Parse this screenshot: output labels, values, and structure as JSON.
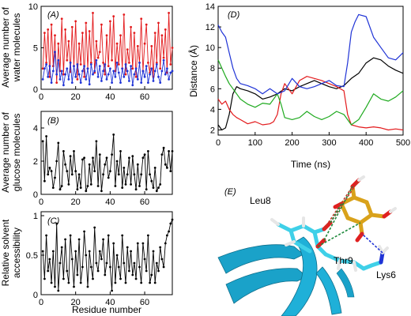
{
  "chart_data": [
    {
      "type": "line",
      "panel_label": "(A)",
      "ylabel": [
        "Average number of",
        "water molecules"
      ],
      "xlabel": "",
      "xlim": [
        0,
        76
      ],
      "ylim": [
        0,
        10
      ],
      "xticks": [
        0,
        20,
        40,
        60
      ],
      "yticks": [
        0,
        5,
        10
      ],
      "series": [
        {
          "color": "#e31a1c",
          "marker": "dot",
          "values": [
            2.5,
            6.8,
            3.2,
            7.2,
            1.5,
            7.8,
            2.8,
            6.5,
            0.8,
            5.5,
            2.2,
            8.5,
            1.8,
            7.2,
            3.5,
            5.8,
            2.1,
            7.5,
            2.8,
            8.2,
            1.2,
            5.5,
            3.0,
            6.8,
            1.5,
            8.0,
            2.5,
            7.0,
            3.2,
            9.2,
            2.0,
            5.8,
            3.8,
            4.5,
            7.8,
            3.2,
            1.8,
            6.5,
            2.8,
            8.2,
            3.5,
            8.8,
            2.2,
            5.5,
            3.0,
            6.5,
            2.5,
            9.0,
            1.8,
            4.8,
            3.2,
            7.5,
            2.5,
            6.8,
            1.5,
            5.2,
            3.2,
            8.5,
            2.2,
            5.5,
            7.8,
            3.2,
            2.0,
            5.2,
            1.5,
            6.8,
            3.2,
            8.0,
            2.5,
            6.5,
            3.8,
            7.2,
            2.0,
            9.2,
            3.0,
            5.0
          ]
        },
        {
          "color": "#1f33d6",
          "marker": "dot",
          "values": [
            1.2,
            2.5,
            3.0,
            1.5,
            2.8,
            0.8,
            2.2,
            4.5,
            1.8,
            3.5,
            1.2,
            2.2,
            0.5,
            1.8,
            2.5,
            1.2,
            3.2,
            0.8,
            2.8,
            1.5,
            3.0,
            1.8,
            0.8,
            2.2,
            2.8,
            1.2,
            2.5,
            0.6,
            3.0,
            1.8,
            2.2,
            3.5,
            1.5,
            2.8,
            1.0,
            2.2,
            3.0,
            1.2,
            1.8,
            2.5,
            0.8,
            2.2,
            1.5,
            3.2,
            2.0,
            0.8,
            2.5,
            1.5,
            3.0,
            2.2,
            1.0,
            2.8,
            0.5,
            1.8,
            2.5,
            1.2,
            3.2,
            0.8,
            2.2,
            1.5,
            2.8,
            0.8,
            1.8,
            2.5,
            1.0,
            2.2,
            3.0,
            1.5,
            0.8,
            2.2,
            3.5,
            1.8,
            2.5,
            1.2,
            2.0,
            2.2
          ]
        }
      ]
    },
    {
      "type": "line",
      "panel_label": "(B)",
      "ylabel": [
        "Average number of",
        "glucose molecules"
      ],
      "xlabel": "",
      "xlim": [
        0,
        76
      ],
      "ylim": [
        0,
        5
      ],
      "xticks": [
        0,
        20,
        40,
        60
      ],
      "yticks": [
        0,
        2,
        4
      ],
      "series": [
        {
          "color": "#000000",
          "marker": "dot",
          "values": [
            3.2,
            0.8,
            3.5,
            1.2,
            1.6,
            1.4,
            0.4,
            1.0,
            2.0,
            3.1,
            0.3,
            0.5,
            2.6,
            1.8,
            1.4,
            0.6,
            2.3,
            1.2,
            2.6,
            1.4,
            0.3,
            1.2,
            0.4,
            2.1,
            2.2,
            0.2,
            0.5,
            1.8,
            0.6,
            2.2,
            1.4,
            3.2,
            0.5,
            2.4,
            0.2,
            1.2,
            1.8,
            2.2,
            1.0,
            1.4,
            2.4,
            3.6,
            0.5,
            2.0,
            1.2,
            2.6,
            0.4,
            1.6,
            0.6,
            1.2,
            2.2,
            0.6,
            2.3,
            1.2,
            0.3,
            1.8,
            0.5,
            1.2,
            2.2,
            2.4,
            0.3,
            2.6,
            1.2,
            0.8,
            0.4,
            1.6,
            0.2,
            0.4,
            0.6,
            2.4,
            2.8,
            1.8,
            1.6,
            2.6,
            1.4,
            2.6
          ]
        }
      ]
    },
    {
      "type": "line",
      "panel_label": "(C)",
      "ylabel": [
        "Relative solvent",
        "accessibility"
      ],
      "xlabel": "Residue number",
      "xlim": [
        0,
        76
      ],
      "ylim": [
        0,
        1.05
      ],
      "xticks": [
        0,
        20,
        40,
        60
      ],
      "yticks": [
        0,
        0.5,
        1
      ],
      "series": [
        {
          "color": "#000000",
          "marker": "dot",
          "values": [
            0.55,
            0.2,
            0.75,
            0.3,
            0.45,
            0.15,
            0.55,
            0.1,
            0.9,
            0.05,
            0.4,
            0.6,
            0.2,
            0.7,
            0.3,
            0.15,
            0.75,
            0.45,
            0.1,
            0.55,
            0.25,
            0.7,
            0.15,
            0.35,
            0.8,
            0.5,
            0.1,
            0.55,
            0.35,
            0.2,
            0.85,
            0.4,
            0.3,
            0.55,
            0.45,
            0.7,
            0.25,
            0.4,
            0.75,
            0.35,
            0.05,
            0.65,
            0.15,
            0.5,
            0.35,
            0.2,
            0.75,
            0.4,
            0.15,
            0.6,
            0.3,
            0.55,
            0.25,
            0.4,
            0.2,
            0.65,
            0.35,
            0.15,
            0.65,
            0.45,
            0.3,
            0.75,
            0.15,
            0.25,
            0.55,
            0.15,
            0.4,
            0.3,
            0.6,
            0.45,
            0.35,
            0.65,
            0.75,
            0.8,
            0.9,
            0.95
          ]
        }
      ]
    },
    {
      "type": "line",
      "panel_label": "(D)",
      "ylabel": "Distance (Å)",
      "xlabel": "Time (ns)",
      "xlim": [
        0,
        500
      ],
      "ylim": [
        1.5,
        14
      ],
      "xticks": [
        0,
        100,
        200,
        300,
        400,
        500
      ],
      "yticks": [
        2,
        4,
        6,
        8,
        10,
        12,
        14
      ],
      "series": [
        {
          "color": "#000000",
          "x": [
            0,
            10,
            20,
            30,
            40,
            50,
            60,
            80,
            100,
            120,
            140,
            160,
            180,
            200,
            220,
            240,
            260,
            280,
            300,
            320,
            340,
            360,
            380,
            400,
            420,
            440,
            460,
            480,
            500
          ],
          "values": [
            2.5,
            2.0,
            2.2,
            3.5,
            5.5,
            6.2,
            6.0,
            5.8,
            5.5,
            5.0,
            5.2,
            5.5,
            6.0,
            5.8,
            6.2,
            6.5,
            6.8,
            6.5,
            6.2,
            6.0,
            6.3,
            7.0,
            7.5,
            8.5,
            9.0,
            8.8,
            8.2,
            7.8,
            7.5
          ]
        },
        {
          "color": "#e31a1c",
          "x": [
            0,
            10,
            20,
            30,
            40,
            50,
            60,
            80,
            100,
            120,
            140,
            150,
            160,
            170,
            180,
            200,
            220,
            240,
            260,
            280,
            300,
            320,
            340,
            350,
            360,
            380,
            400,
            420,
            440,
            460,
            480,
            500
          ],
          "values": [
            5.0,
            4.5,
            4.8,
            4.0,
            3.5,
            3.2,
            3.0,
            2.6,
            2.8,
            2.5,
            2.6,
            2.8,
            3.5,
            5.5,
            6.5,
            5.5,
            6.8,
            7.2,
            7.0,
            6.8,
            6.5,
            6.2,
            5.8,
            3.5,
            2.5,
            2.3,
            2.2,
            2.3,
            2.2,
            2.0,
            2.1,
            2.0
          ]
        },
        {
          "color": "#1faa1f",
          "x": [
            0,
            10,
            20,
            30,
            40,
            50,
            60,
            80,
            100,
            120,
            140,
            160,
            170,
            180,
            200,
            220,
            240,
            260,
            280,
            300,
            320,
            340,
            360,
            380,
            400,
            420,
            440,
            460,
            480,
            500
          ],
          "values": [
            8.8,
            8.0,
            7.2,
            6.5,
            6.0,
            5.5,
            5.0,
            4.5,
            4.2,
            4.6,
            4.5,
            5.5,
            4.5,
            3.2,
            3.0,
            3.2,
            3.8,
            3.3,
            3.0,
            3.3,
            3.8,
            3.5,
            2.5,
            3.0,
            4.2,
            5.5,
            5.0,
            4.8,
            5.2,
            5.8
          ]
        },
        {
          "color": "#1f33d6",
          "x": [
            0,
            10,
            20,
            30,
            40,
            50,
            60,
            80,
            100,
            120,
            140,
            160,
            180,
            200,
            220,
            240,
            260,
            280,
            300,
            320,
            340,
            350,
            360,
            370,
            380,
            400,
            420,
            440,
            460,
            480,
            500
          ],
          "values": [
            12.2,
            11.5,
            11.0,
            9.5,
            8.0,
            7.0,
            6.5,
            6.3,
            6.0,
            5.5,
            6.0,
            5.5,
            5.8,
            7.0,
            6.2,
            6.0,
            6.2,
            6.5,
            6.8,
            6.3,
            6.2,
            8.5,
            11.5,
            12.5,
            13.2,
            13.0,
            11.0,
            10.0,
            9.0,
            8.8,
            9.5
          ]
        }
      ]
    }
  ],
  "inset_E": {
    "panel_label": "(E)",
    "labels": [
      "Leu8",
      "Thr9",
      "Lys6"
    ],
    "colors": {
      "backbone": "#1aa2c9",
      "carbon": "#3fd0e8",
      "oxygen": "#e02020",
      "nitrogen": "#1f33d6",
      "hydrogen": "#e6e6e6",
      "glucose": "#d9a21b",
      "hbond_red": "#c0392b",
      "hbond_green": "#1e8a3c",
      "hbond_blue": "#1f33d6"
    }
  }
}
